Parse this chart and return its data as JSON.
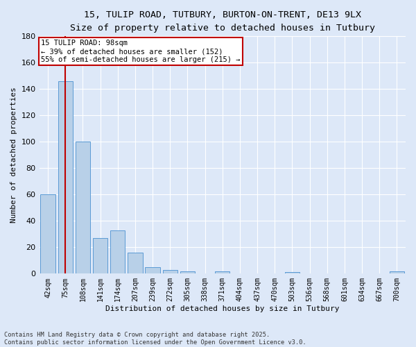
{
  "title_line1": "15, TULIP ROAD, TUTBURY, BURTON-ON-TRENT, DE13 9LX",
  "title_line2": "Size of property relative to detached houses in Tutbury",
  "xlabel": "Distribution of detached houses by size in Tutbury",
  "ylabel": "Number of detached properties",
  "categories": [
    "42sqm",
    "75sqm",
    "108sqm",
    "141sqm",
    "174sqm",
    "207sqm",
    "239sqm",
    "272sqm",
    "305sqm",
    "338sqm",
    "371sqm",
    "404sqm",
    "437sqm",
    "470sqm",
    "503sqm",
    "536sqm",
    "568sqm",
    "601sqm",
    "634sqm",
    "667sqm",
    "700sqm"
  ],
  "values": [
    60,
    146,
    100,
    27,
    33,
    16,
    5,
    3,
    2,
    0,
    2,
    0,
    0,
    0,
    1,
    0,
    0,
    0,
    0,
    0,
    2
  ],
  "bar_color": "#b8d0e8",
  "bar_edge_color": "#5b9bd5",
  "vline_color": "#c00000",
  "vline_x_index": 1,
  "annotation_text": "15 TULIP ROAD: 98sqm\n← 39% of detached houses are smaller (152)\n55% of semi-detached houses are larger (215) →",
  "annotation_box_edgecolor": "#c00000",
  "ylim": [
    0,
    180
  ],
  "yticks": [
    0,
    20,
    40,
    60,
    80,
    100,
    120,
    140,
    160,
    180
  ],
  "background_color": "#dde8f8",
  "grid_color": "#ffffff",
  "footnote": "Contains HM Land Registry data © Crown copyright and database right 2025.\nContains public sector information licensed under the Open Government Licence v3.0.",
  "title_fontsize": 9.5,
  "subtitle_fontsize": 8.5,
  "axis_label_fontsize": 8,
  "tick_fontsize": 7,
  "annotation_fontsize": 7.5
}
